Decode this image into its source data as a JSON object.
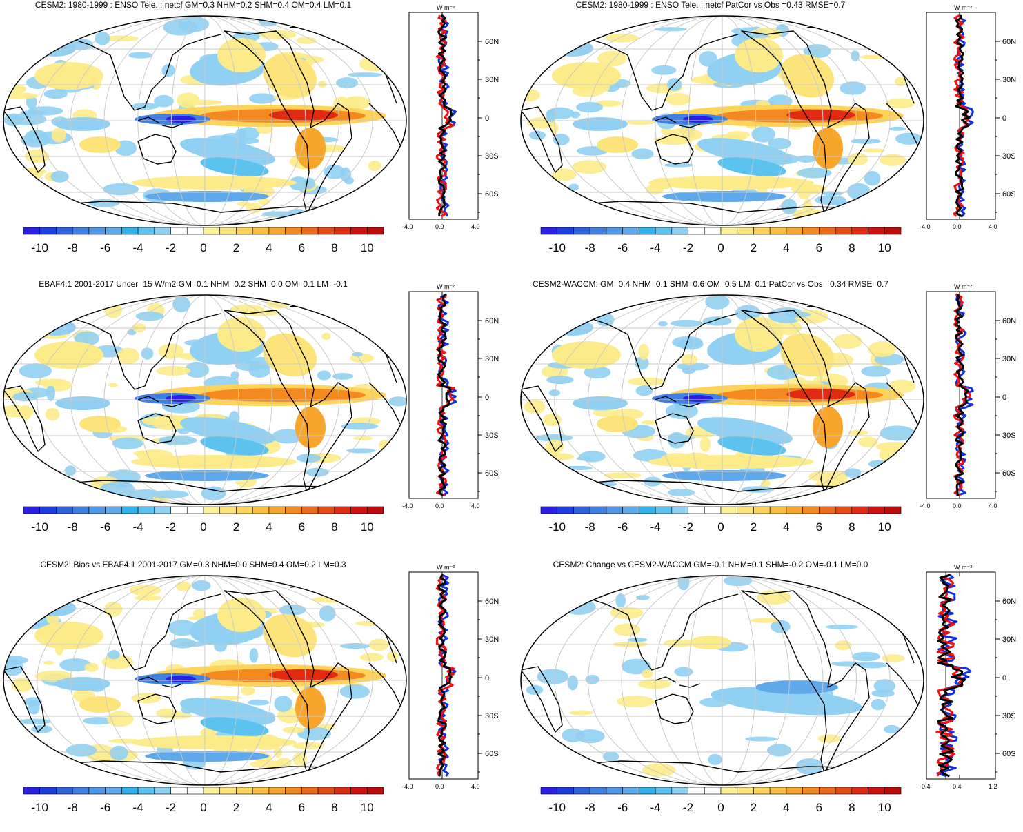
{
  "panels": [
    {
      "id": "p1",
      "title": "CESM2: 1980-1999 : ENSO Tele. : netcf GM=0.3 NHM=0.2 SHM=0.4 OM=0.4 LM=0.1",
      "zonal_xticks": [
        "-4.0",
        "0.0",
        "4.0"
      ],
      "pattern": "model"
    },
    {
      "id": "p2",
      "title": "CESM2: 1980-1999 : ENSO Tele. : netcf PatCor vs Obs =0.43 RMSE=0.7",
      "zonal_xticks": [
        "-4.0",
        "0.0",
        "4.0"
      ],
      "pattern": "model"
    },
    {
      "id": "p3",
      "title": "EBAF4.1 2001-2017 Uncer=15 W/m2 GM=0.1 NHM=0.2 SHM=0.0 OM=0.1 LM=-0.1",
      "zonal_xticks": [
        "-4.0",
        "0.0",
        "4.0"
      ],
      "pattern": "obs"
    },
    {
      "id": "p4",
      "title": "CESM2-WACCM: GM=0.4 NHM=0.1 SHM=0.6 OM=0.5 LM=0.1 PatCor vs Obs =0.34 RMSE=0.7",
      "zonal_xticks": [
        "-4.0",
        "0.0",
        "4.0"
      ],
      "pattern": "model"
    },
    {
      "id": "p5",
      "title": "CESM2: Bias vs EBAF4.1 2001-2017 GM=0.3 NHM=0.0 SHM=0.4 OM=0.2 LM=0.3",
      "zonal_xticks": [
        "-4.0",
        "0.0",
        "4.0"
      ],
      "pattern": "bias"
    },
    {
      "id": "p6",
      "title": "CESM2: Change vs CESM2-WACCM GM=-0.1 NHM=0.1 SHM=-0.2 OM=-0.1 LM=0.0",
      "zonal_xticks": [
        "-0.4",
        "0.4",
        "1.2"
      ],
      "pattern": "change"
    }
  ],
  "zonal_units": "W m⁻²",
  "lat_ticks": [
    "60N",
    "30N",
    "0",
    "30S",
    "60S"
  ],
  "colorbar": {
    "labels": [
      "-10",
      "-8",
      "-6",
      "-4",
      "-2",
      "0",
      "2",
      "4",
      "6",
      "8",
      "10"
    ],
    "colors": [
      "#2a1fe6",
      "#1c3de0",
      "#2f62dd",
      "#3f80e2",
      "#4f97e8",
      "#5fa9ea",
      "#2fb3ee",
      "#5cc3f0",
      "#8fd0f3",
      "#ffffff",
      "#ffffff",
      "#fdf29a",
      "#fde47a",
      "#fdd35a",
      "#fbbf3f",
      "#f8a52b",
      "#f48a1f",
      "#ef6a18",
      "#e84a14",
      "#e02a12",
      "#d01010",
      "#c00a0a"
    ]
  },
  "colors": {
    "model_line": "#000000",
    "cesm_line": "#1030e0",
    "obs_line": "#f01010",
    "warm": "#f5a82a",
    "cool": "#5aa8ea"
  }
}
